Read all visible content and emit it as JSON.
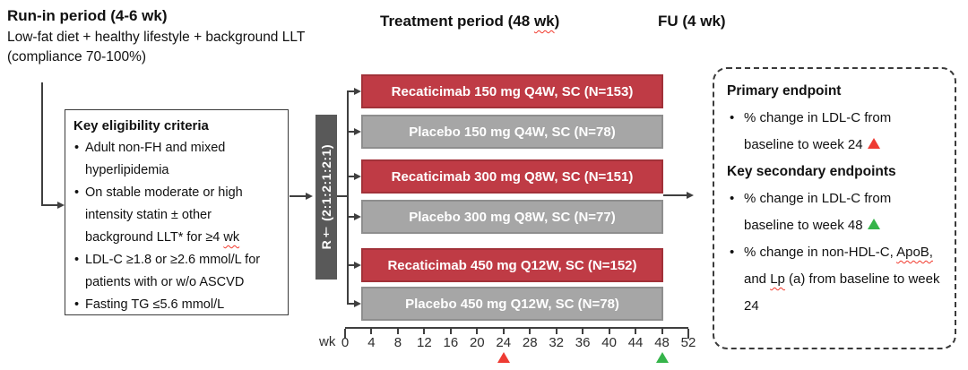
{
  "run_in": {
    "title": "Run-in period (4-6 wk)",
    "description": "Low-fat diet + healthy lifestyle + background LLT (compliance 70-100%)"
  },
  "treatment_period": {
    "title": "Treatment period (48 wk)"
  },
  "follow_up": {
    "title": "FU (4 wk)"
  },
  "eligibility": {
    "title": "Key eligibility criteria",
    "items": [
      "Adult non-FH and mixed hyperlipidemia",
      "On stable moderate or high intensity statin ± other background LLT* for ≥4 wk",
      "LDL-C ≥1.8 or ≥2.6 mmol/L for patients with or w/o ASCVD",
      "Fasting TG ≤5.6 mmol/L"
    ]
  },
  "randomization": {
    "label": "R† (2:1:2:1:2:1)"
  },
  "arms": [
    {
      "label": "Recaticimab 150 mg Q4W, SC (N=153)",
      "type": "drug"
    },
    {
      "label": "Placebo 150 mg Q4W, SC (N=78)",
      "type": "placebo"
    },
    {
      "label": "Recaticimab 300 mg Q8W, SC (N=151)",
      "type": "drug"
    },
    {
      "label": "Placebo 300 mg Q8W, SC (N=77)",
      "type": "placebo"
    },
    {
      "label": "Recaticimab 450 mg Q12W, SC (N=152)",
      "type": "drug"
    },
    {
      "label": "Placebo 450 mg Q12W, SC (N=78)",
      "type": "placebo"
    }
  ],
  "timeline": {
    "unit_label": "wk",
    "ticks": [
      0,
      4,
      8,
      12,
      16,
      20,
      24,
      28,
      32,
      36,
      40,
      44,
      48,
      52
    ],
    "markers": [
      {
        "week": 24,
        "color": "#ee3b33",
        "name": "primary-endpoint-week24"
      },
      {
        "week": 48,
        "color": "#35b44a",
        "name": "secondary-endpoint-week48"
      }
    ]
  },
  "endpoints": {
    "primary_title": "Primary endpoint",
    "primary_item": "% change in LDL-C from baseline to week 24",
    "secondary_title": "Key secondary endpoints",
    "secondary_item_1": "% change in LDL-C from baseline to week 48",
    "secondary_item_2": "% change in non-HDL-C, ApoB, and Lp (a) from baseline to week 24"
  },
  "colors": {
    "drug_bar": "#bf3b45",
    "placebo_bar": "#a6a6a6",
    "randomization_bar": "#595959",
    "primary_marker": "#ee3b33",
    "secondary_marker": "#35b44a",
    "connector": "#3f3f3f"
  }
}
